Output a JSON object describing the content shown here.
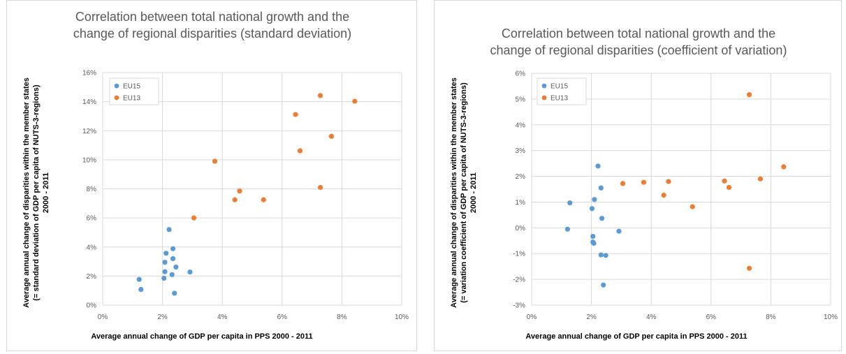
{
  "chart_data": [
    {
      "type": "scatter",
      "title": [
        "Correlation between total national growth and the",
        "change of regional disparities (standard deviation)"
      ],
      "xlabel": "Average annual change of GDP per capita in PPS 2000 - 2011",
      "ylabel": [
        "Average annual change of disparities within the member states",
        "(= standard deviation of GDP per capita of NUTS-3-regions)",
        "2000 - 2011"
      ],
      "xlim": [
        0,
        0.1
      ],
      "ylim": [
        0,
        0.16
      ],
      "xticks": [
        0,
        0.02,
        0.04,
        0.06,
        0.08,
        0.1
      ],
      "yticks": [
        0,
        0.02,
        0.04,
        0.06,
        0.08,
        0.1,
        0.12,
        0.14,
        0.16
      ],
      "xtick_labels": [
        "0%",
        "2%",
        "4%",
        "6%",
        "8%",
        "10%"
      ],
      "ytick_labels": [
        "0%",
        "2%",
        "4%",
        "6%",
        "8%",
        "10%",
        "12%",
        "14%",
        "16%"
      ],
      "grid": true,
      "legend_position": "top-left",
      "series": [
        {
          "name": "EU15",
          "color": "#5b9bd5",
          "x": [
            0.0122,
            0.0128,
            0.0205,
            0.0208,
            0.0208,
            0.0212,
            0.0222,
            0.0232,
            0.0235,
            0.0235,
            0.024,
            0.0245,
            0.0292
          ],
          "y": [
            0.0177,
            0.0108,
            0.0185,
            0.023,
            0.0295,
            0.0357,
            0.052,
            0.021,
            0.0388,
            0.032,
            0.0082,
            0.0262,
            0.0228
          ]
        },
        {
          "name": "EU13",
          "color": "#ed7d31",
          "x": [
            0.0305,
            0.0375,
            0.0442,
            0.0458,
            0.0538,
            0.0645,
            0.066,
            0.0728,
            0.0728,
            0.0765,
            0.0843
          ],
          "y": [
            0.06,
            0.099,
            0.0725,
            0.0785,
            0.0725,
            0.1312,
            0.1062,
            0.1442,
            0.081,
            0.1162,
            0.1403
          ]
        }
      ]
    },
    {
      "type": "scatter",
      "title": [
        "Correlation between total national growth and the",
        "change of regional disparities (coefficient of variation)"
      ],
      "xlabel": "Average annual change of GDP per capita in PPS 2000 - 2011",
      "ylabel": [
        "Average annual change of disparities within the member states",
        "(= variation coefficient of GDP per capita of NUTS-3-regions)",
        "2000 - 2011"
      ],
      "xlim": [
        0,
        0.1
      ],
      "ylim": [
        -0.03,
        0.06
      ],
      "xticks": [
        0,
        0.02,
        0.04,
        0.06,
        0.08,
        0.1
      ],
      "yticks": [
        -0.03,
        -0.02,
        -0.01,
        0,
        0.01,
        0.02,
        0.03,
        0.04,
        0.05,
        0.06
      ],
      "xtick_labels": [
        "0%",
        "2%",
        "4%",
        "6%",
        "8%",
        "10%"
      ],
      "ytick_labels": [
        "-3%",
        "-2%",
        "-1%",
        "0%",
        "1%",
        "2%",
        "3%",
        "4%",
        "5%",
        "6%"
      ],
      "grid": true,
      "legend_position": "top-left",
      "series": [
        {
          "name": "EU15",
          "color": "#5b9bd5",
          "x": [
            0.012,
            0.0128,
            0.0202,
            0.0205,
            0.0205,
            0.0208,
            0.021,
            0.0222,
            0.0232,
            0.0232,
            0.0235,
            0.024,
            0.0248,
            0.0292
          ],
          "y": [
            -0.0005,
            0.0097,
            0.0075,
            -0.0033,
            -0.0055,
            -0.006,
            0.011,
            0.024,
            0.0155,
            -0.0105,
            0.0037,
            -0.0222,
            -0.0107,
            -0.0013
          ]
        },
        {
          "name": "EU13",
          "color": "#ed7d31",
          "x": [
            0.0305,
            0.0375,
            0.0442,
            0.0458,
            0.0538,
            0.0645,
            0.066,
            0.0728,
            0.0728,
            0.0765,
            0.0843
          ],
          "y": [
            0.0172,
            0.0177,
            0.0127,
            0.018,
            0.0082,
            0.0182,
            0.0157,
            0.0517,
            -0.0157,
            0.019,
            0.0237
          ]
        }
      ]
    }
  ]
}
